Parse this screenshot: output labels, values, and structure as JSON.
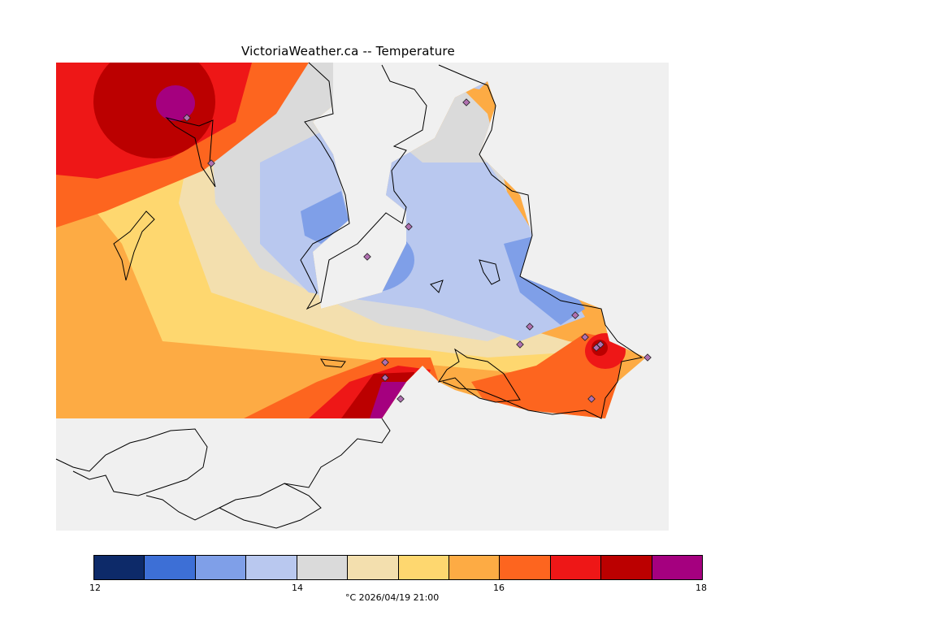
{
  "title": "VictoriaWeather.ca -- Temperature",
  "legend": {
    "colors": [
      "#0d2a69",
      "#3d6fd6",
      "#7f9fe8",
      "#b9c8ef",
      "#dadada",
      "#f3dfae",
      "#fed76f",
      "#fdab44",
      "#fd651f",
      "#ee1717",
      "#bb0000",
      "#a5007f"
    ],
    "ticks": [
      "12",
      "14",
      "16",
      "18"
    ],
    "caption": "°C  2026/04/19 21:00"
  },
  "colors": {
    "land_background": "#f0f0f0",
    "coastline": "#000000",
    "station_marker": "#b070b0"
  }
}
